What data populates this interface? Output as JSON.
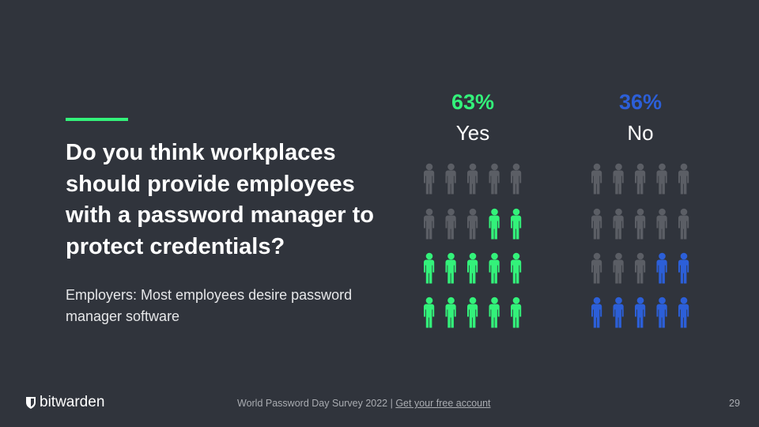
{
  "slide": {
    "title": "Do you think workplaces should provide employees with a password manager to protect credentials?",
    "subtitle": "Employers: Most employees desire password manager software",
    "brand": "bitwarden",
    "footer_text": "World Password Day Survey 2022 | ",
    "footer_link": "Get your free account",
    "page_number": "29"
  },
  "chart_data": {
    "type": "pictograph",
    "categories": [
      "Yes",
      "No"
    ],
    "values": [
      63,
      36
    ],
    "value_labels": [
      "63%",
      "36%"
    ],
    "colors": [
      "#33f27a",
      "#2c5fd8"
    ]
  }
}
